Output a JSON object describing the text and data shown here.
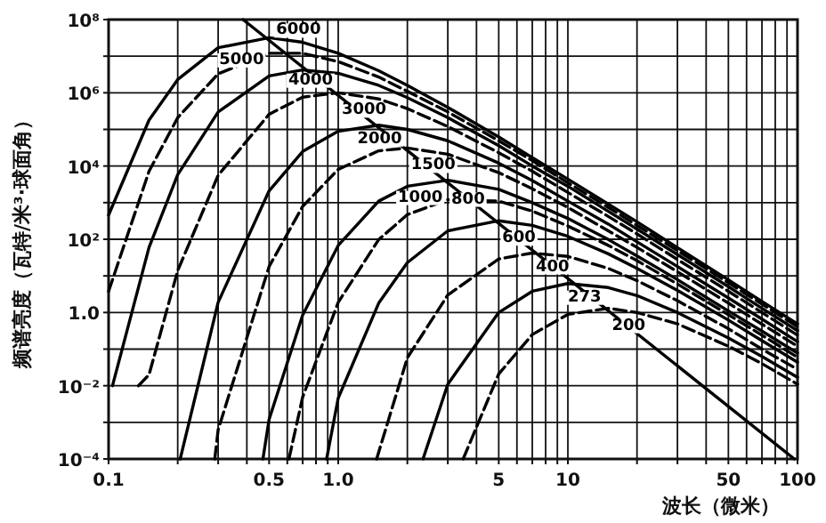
{
  "chart_data": {
    "type": "line",
    "xlabel": "波长（微米）",
    "ylabel": "频谱亮度（瓦特/米³·球面角）",
    "log": "xy",
    "grid": true,
    "xlim": [
      0.1,
      100
    ],
    "ylim": [
      0.0001,
      100000000.0
    ],
    "xticks": [
      0.1,
      {
        "value": 0.2,
        "label": null
      },
      {
        "value": 0.3,
        "label": null
      },
      {
        "value": 0.4,
        "label": null
      },
      0.5,
      {
        "value": 0.6,
        "label": null
      },
      {
        "value": 0.7,
        "label": null
      },
      {
        "value": 0.8,
        "label": null
      },
      {
        "value": 0.9,
        "label": null
      },
      {
        "value": 1,
        "label": "1.0"
      },
      {
        "value": 2,
        "label": null
      },
      {
        "value": 3,
        "label": null
      },
      {
        "value": 4,
        "label": null
      },
      5,
      {
        "value": 6,
        "label": null
      },
      {
        "value": 7,
        "label": null
      },
      {
        "value": 8,
        "label": null
      },
      {
        "value": 9,
        "label": null
      },
      10,
      {
        "value": 20,
        "label": null
      },
      {
        "value": 30,
        "label": null
      },
      {
        "value": 40,
        "label": null
      },
      50,
      {
        "value": 60,
        "label": null
      },
      {
        "value": 70,
        "label": null
      },
      {
        "value": 80,
        "label": null
      },
      {
        "value": 90,
        "label": null
      },
      100
    ],
    "yticks": [
      {
        "value": 0.0001,
        "label": "10⁻⁴"
      },
      {
        "value": 0.001,
        "label": null
      },
      {
        "value": 0.01,
        "label": "10⁻²"
      },
      {
        "value": 0.1,
        "label": null
      },
      {
        "value": 1,
        "label": "1.0"
      },
      {
        "value": 10,
        "label": null
      },
      {
        "value": 100,
        "label": "10²"
      },
      {
        "value": 1000,
        "label": null
      },
      {
        "value": 10000.0,
        "label": "10⁴"
      },
      {
        "value": 100000.0,
        "label": null
      },
      {
        "value": 1000000.0,
        "label": "10⁶"
      },
      {
        "value": 10000000.0,
        "label": null
      },
      {
        "value": 100000000.0,
        "label": "10⁸"
      }
    ],
    "series": [
      {
        "name": "6000",
        "color": "#000000",
        "line_style": "solid",
        "x": [
          0.1,
          0.15,
          0.2,
          0.3,
          0.5,
          0.7,
          1,
          1.5,
          2,
          3,
          5,
          7,
          10,
          15,
          20,
          30,
          50,
          70,
          100
        ],
        "values": [
          460,
          180000.0,
          2300000.0,
          17000000.0,
          32000000.0,
          24000000.0,
          12000000.0,
          4000000.0,
          1600000.0,
          400000.0,
          62000.0,
          17000.0,
          4400.0,
          910,
          300,
          59,
          7.8,
          2.0,
          0.49
        ]
      },
      {
        "name": "5000",
        "color": "#000000",
        "line_style": "dashed",
        "x": [
          0.1,
          0.15,
          0.2,
          0.3,
          0.5,
          0.7,
          1,
          1.5,
          2,
          3,
          5,
          7,
          10,
          15,
          20,
          30,
          50,
          70,
          100
        ],
        "values": [
          3.8,
          7200.0,
          210000.0,
          3300000.0,
          12000000.0,
          12000000.0,
          7100000.0,
          2700000.0,
          1100000.0,
          300000.0,
          49000.0,
          14000.0,
          3500.0,
          740,
          240,
          49,
          6.5,
          1.7,
          0.41
        ]
      },
      {
        "name": "4000",
        "color": "#000000",
        "line_style": "solid",
        "x": [
          0.104,
          0.15,
          0.2,
          0.3,
          0.5,
          0.7,
          1,
          1.5,
          2,
          3,
          5,
          7,
          10,
          15,
          20,
          30,
          50,
          70,
          100
        ],
        "values": [
          0.01,
          60,
          5800.0,
          300000.0,
          2900000.0,
          4200000.0,
          3400000.0,
          1600000.0,
          740000.0,
          210000.0,
          36000.0,
          10000.0,
          2800.0,
          580,
          190,
          38,
          5.1,
          1.3,
          0.32
        ]
      },
      {
        "name": "3000",
        "color": "#000000",
        "line_style": "dashed",
        "x": [
          0.135,
          0.15,
          0.2,
          0.3,
          0.5,
          0.7,
          1,
          1.5,
          2,
          3,
          5,
          7,
          10,
          15,
          20,
          30,
          50,
          70,
          100
        ],
        "values": [
          0.01,
          0.02,
          14,
          5600.0,
          260000.0,
          760000.0,
          1000000.0,
          680000.0,
          370000.0,
          120000.0,
          23000.0,
          7200.0,
          1900.0,
          420,
          140,
          28,
          3.8,
          1.0,
          0.24
        ]
      },
      {
        "name": "2000",
        "color": "#000000",
        "line_style": "solid",
        "x": [
          0.205,
          0.3,
          0.5,
          0.7,
          1,
          1.5,
          2,
          3,
          5,
          7,
          10,
          15,
          20,
          30,
          50,
          70,
          100
        ],
        "values": [
          0.0001,
          1.9,
          2100.0,
          25000.0,
          89000.0,
          130000.0,
          100000.0,
          49000.0,
          12000.0,
          4000.0,
          1100.0,
          260,
          85,
          18,
          2.5,
          0.66,
          0.16
        ]
      },
      {
        "name": "1500",
        "color": "#000000",
        "line_style": "dashed",
        "x": [
          0.29,
          0.3,
          0.5,
          0.7,
          1,
          1.5,
          2,
          3,
          5,
          7,
          10,
          15,
          20,
          30,
          50,
          70,
          100
        ],
        "values": [
          0.0001,
          0.00063,
          18,
          790,
          8100.0,
          26000.0,
          31000.0,
          21000.0,
          6600.0,
          2400.0,
          740,
          170,
          60,
          13,
          1.8,
          0.48,
          0.12
        ]
      },
      {
        "name": "1000",
        "color": "#000000",
        "line_style": "solid",
        "x": [
          0.47,
          0.5,
          0.7,
          1,
          1.5,
          2,
          3,
          5,
          7,
          10,
          15,
          20,
          30,
          50,
          70,
          100
        ],
        "values": [
          0.0001,
          0.0012,
          0.85,
          68,
          1100.0,
          2800.0,
          4100.0,
          2300.0,
          1000.0,
          370,
          98,
          35,
          7.9,
          1.1,
          0.31,
          0.078
        ]
      },
      {
        "name": "800",
        "color": "#000000",
        "line_style": "dashed",
        "x": [
          0.61,
          0.7,
          1,
          1.5,
          2,
          3,
          5,
          7,
          10,
          15,
          20,
          30,
          50,
          70,
          100
        ],
        "values": [
          0.0001,
          0.0049,
          1.9,
          98,
          470,
          1200.0,
          1100.0,
          590,
          230,
          68,
          26,
          6.0,
          0.87,
          0.24,
          0.06
        ]
      },
      {
        "name": "600",
        "color": "#000000",
        "line_style": "solid",
        "x": [
          0.89,
          1,
          1.5,
          2,
          3,
          5,
          7,
          10,
          15,
          20,
          30,
          50,
          70,
          100
        ],
        "values": [
          0.0001,
          0.0046,
          1.8,
          23,
          170,
          320,
          240,
          120,
          40,
          16,
          4.0,
          0.62,
          0.17,
          0.044
        ]
      },
      {
        "name": "400",
        "color": "#000000",
        "line_style": "dashed",
        "x": [
          1.47,
          2,
          3,
          5,
          7,
          10,
          15,
          20,
          30,
          50,
          70,
          100
        ],
        "values": [
          0.0001,
          0.058,
          3.0,
          29,
          42,
          34,
          16,
          7.4,
          2.1,
          0.36,
          0.1,
          0.028
        ]
      },
      {
        "name": "273",
        "color": "#000000",
        "line_style": "solid",
        "x": [
          2.34,
          3,
          5,
          7,
          10,
          15,
          20,
          30,
          50,
          70,
          100
        ],
        "values": [
          0.0001,
          0.011,
          1.0,
          3.8,
          6.2,
          4.8,
          2.9,
          1.0,
          0.2,
          0.063,
          0.017
        ]
      },
      {
        "name": "200",
        "color": "#000000",
        "line_style": "dashed",
        "x": [
          3.5,
          5,
          7,
          10,
          15,
          20,
          30,
          50,
          70,
          100
        ],
        "values": [
          0.0001,
          0.021,
          0.25,
          0.89,
          1.3,
          1.0,
          0.49,
          0.12,
          0.04,
          0.011
        ]
      },
      {
        "color": "#000000",
        "line_style": "solid",
        "x": [
          0.385,
          96.8
        ],
        "values": [
          100000000.0,
          0.0001
        ]
      }
    ]
  }
}
